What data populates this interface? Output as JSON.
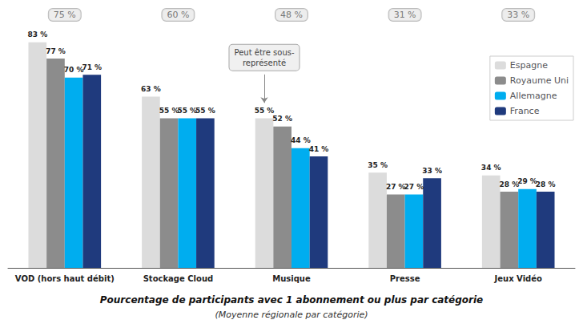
{
  "chart_data": {
    "type": "bar",
    "title": "Pourcentage de participants avec 1 abonnement ou plus par catégorie",
    "subtitle": "(Moyenne régionale par catégorie)",
    "categories": [
      "VOD (hors haut débit)",
      "Stockage Cloud",
      "Musique",
      "Presse",
      "Jeux Vidéo"
    ],
    "series": [
      {
        "name": "Espagne",
        "color": "#dcdcdc",
        "values": [
          83,
          63,
          55,
          35,
          34
        ],
        "value_labels": [
          "83 %",
          "63 %",
          "55 %",
          "35 %",
          "34 %"
        ]
      },
      {
        "name": "Royaume Uni",
        "color": "#8c8c8c",
        "values": [
          77,
          55,
          52,
          27,
          28
        ],
        "value_labels": [
          "77 %",
          "55 %",
          "52 %",
          "27 %",
          "28 %"
        ]
      },
      {
        "name": "Allemagne",
        "color": "#00adef",
        "values": [
          70,
          55,
          44,
          27,
          29
        ],
        "value_labels": [
          "70 %",
          "55 %",
          "44 %",
          "27 %",
          "29 %"
        ]
      },
      {
        "name": "France",
        "color": "#1f3a7d",
        "values": [
          71,
          55,
          41,
          33,
          28
        ],
        "value_labels": [
          "71 %",
          "55 %",
          "41 %",
          "33 %",
          "28 %"
        ]
      }
    ],
    "averages": [
      75,
      60,
      48,
      31,
      33
    ],
    "average_labels": [
      "75 %",
      "60 %",
      "48 %",
      "31 %",
      "33 %"
    ],
    "annotations": [
      {
        "text": "Peut être sous-\nreprésenté",
        "category": "Musique",
        "series": "Espagne"
      }
    ],
    "ylim": [
      0,
      95
    ],
    "data_labels": true,
    "legend": "upper right",
    "grid": false,
    "tick_labels": "x"
  }
}
